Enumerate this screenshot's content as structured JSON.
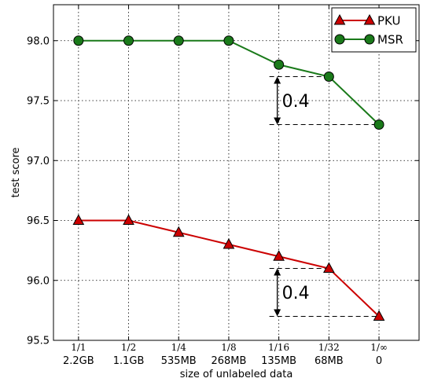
{
  "chart_data": {
    "type": "line",
    "xlabel": "size of unlabeled data",
    "ylabel": "test score",
    "ylim": [
      95.5,
      98.3
    ],
    "xlim": [
      -0.5,
      6.8
    ],
    "grid": true,
    "legend_position": "top-right",
    "x_ticks": [
      {
        "frac": "1/1",
        "size": "2.2GB"
      },
      {
        "frac": "1/2",
        "size": "1.1GB"
      },
      {
        "frac": "1/4",
        "size": "535MB"
      },
      {
        "frac": "1/8",
        "size": "268MB"
      },
      {
        "frac": "1/16",
        "size": "135MB"
      },
      {
        "frac": "1/32",
        "size": "68MB"
      },
      {
        "frac": "1/∞",
        "size": "0"
      }
    ],
    "y_ticks": [
      {
        "value": 95.5,
        "label": "95.5"
      },
      {
        "value": 96.0,
        "label": "96.0"
      },
      {
        "value": 96.5,
        "label": "96.5"
      },
      {
        "value": 97.0,
        "label": "97.0"
      },
      {
        "value": 97.5,
        "label": "97.5"
      },
      {
        "value": 98.0,
        "label": "98.0"
      }
    ],
    "series": [
      {
        "name": "PKU",
        "color": "#cc0000",
        "marker": "triangle",
        "values": [
          96.5,
          96.5,
          96.4,
          96.3,
          96.2,
          96.1,
          95.7
        ]
      },
      {
        "name": "MSR",
        "color": "#1a7a1a",
        "marker": "circle",
        "values": [
          98.0,
          98.0,
          98.0,
          98.0,
          97.8,
          97.7,
          97.3
        ]
      }
    ],
    "annotations": [
      {
        "text": "0.4",
        "series": "MSR",
        "from_value": 97.7,
        "to_value": 97.3
      },
      {
        "text": "0.4",
        "series": "PKU",
        "from_value": 96.1,
        "to_value": 95.7
      }
    ]
  }
}
